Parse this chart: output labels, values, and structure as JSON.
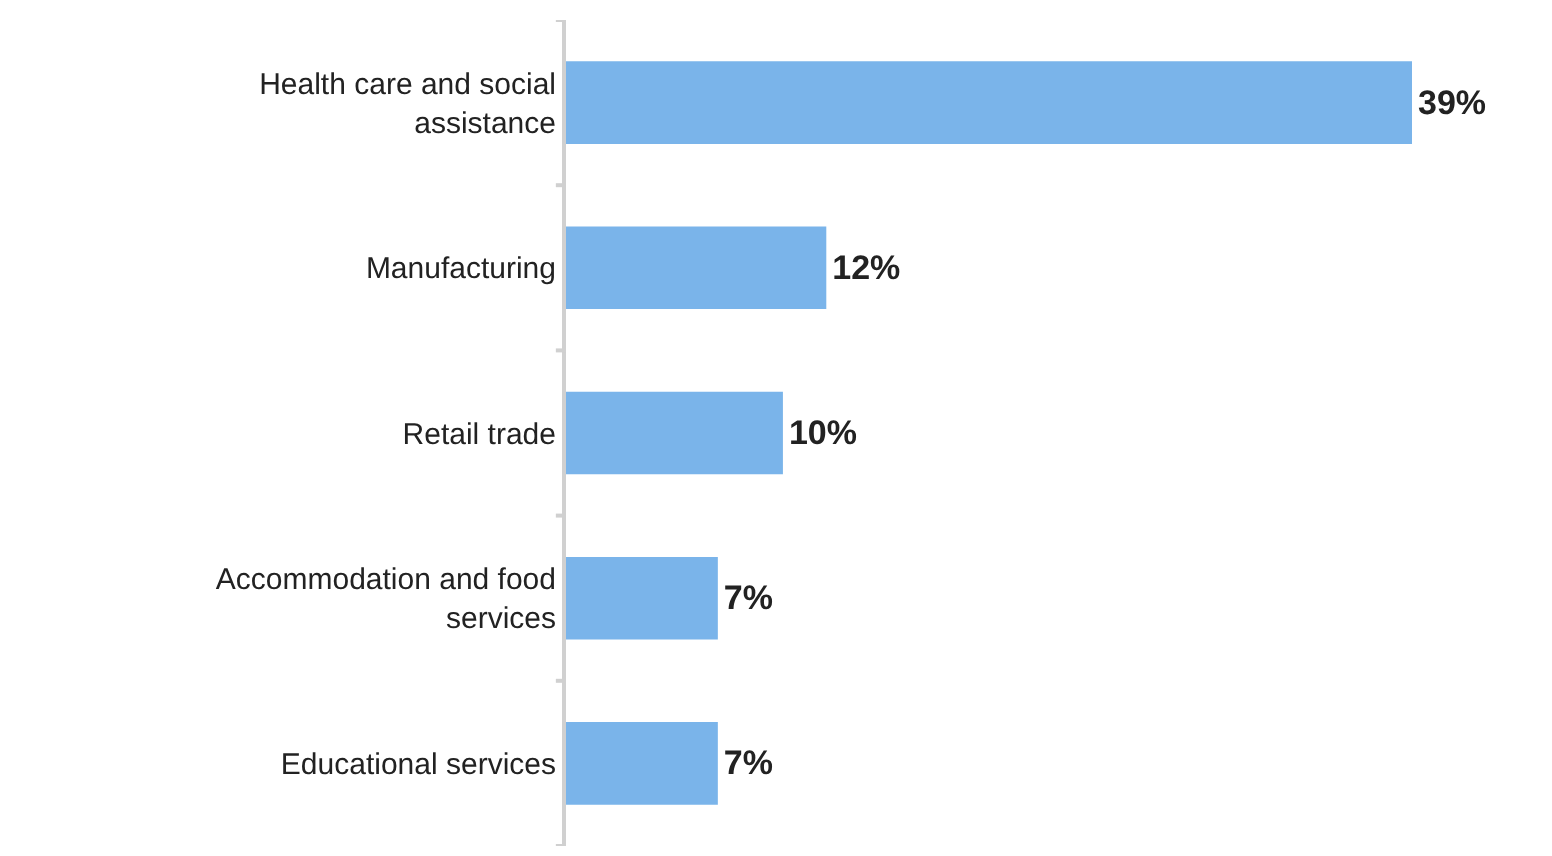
{
  "chart_data": {
    "type": "bar",
    "orientation": "horizontal",
    "categories": [
      "Health care and social assistance",
      "Manufacturing",
      "Retail trade",
      "Accommodation and food services",
      "Educational services"
    ],
    "values": [
      39,
      12,
      10,
      7,
      7
    ],
    "value_labels": [
      "39%",
      "12%",
      "10%",
      "7%",
      "7%"
    ],
    "color": "#7ab4ea"
  }
}
